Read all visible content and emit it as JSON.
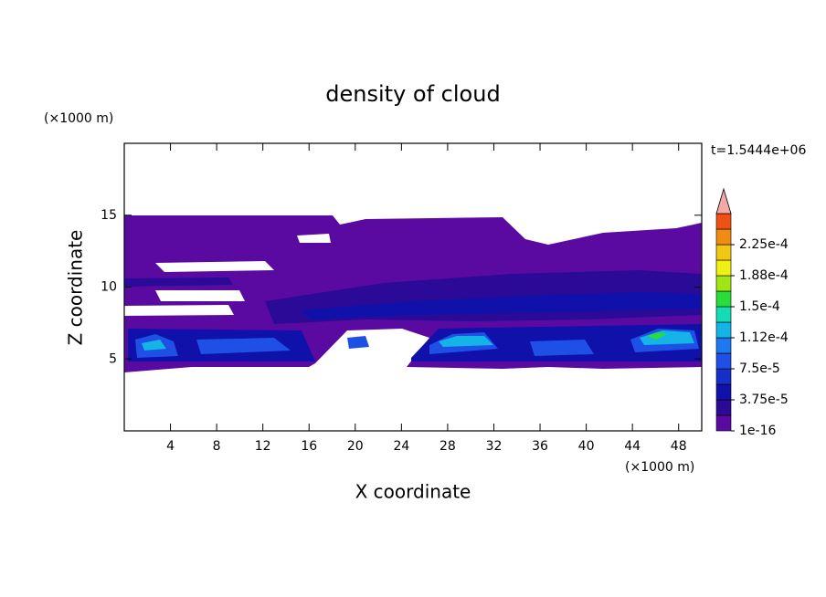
{
  "chart_data": {
    "type": "contour",
    "title": "density of cloud",
    "x_label": "X coordinate",
    "y_label": "Z coordinate",
    "x_unit": "(×1000 m)",
    "y_unit": "(×1000 m)",
    "time_label": "t=1.5444e+06",
    "xlim": [
      0,
      50
    ],
    "ylim": [
      0,
      20
    ],
    "xticks": [
      4,
      8,
      12,
      16,
      20,
      24,
      28,
      32,
      36,
      40,
      44,
      48
    ],
    "yticks": [
      5,
      10,
      15
    ],
    "colorbar": {
      "lim": [
        0,
        0.0002625
      ],
      "ticks": [
        {
          "value": 1e-16,
          "label": "1e-16"
        },
        {
          "value": 3.75e-05,
          "label": "3.75e-5"
        },
        {
          "value": 7.5e-05,
          "label": "7.5e-5"
        },
        {
          "value": 0.0001125,
          "label": "1.12e-4"
        },
        {
          "value": 0.00015,
          "label": "1.5e-4"
        },
        {
          "value": 0.0001875,
          "label": "1.88e-4"
        },
        {
          "value": 0.000225,
          "label": "2.25e-4"
        }
      ],
      "colors": [
        "#5a0aa0",
        "#2a0a96",
        "#1010aa",
        "#1430c8",
        "#1e50e6",
        "#1e78f0",
        "#14b4e6",
        "#14dcb4",
        "#28dc3c",
        "#a0e614",
        "#f0f014",
        "#f0c814",
        "#f08c14",
        "#f05014"
      ],
      "extend_color": "#f4a8a8"
    }
  }
}
